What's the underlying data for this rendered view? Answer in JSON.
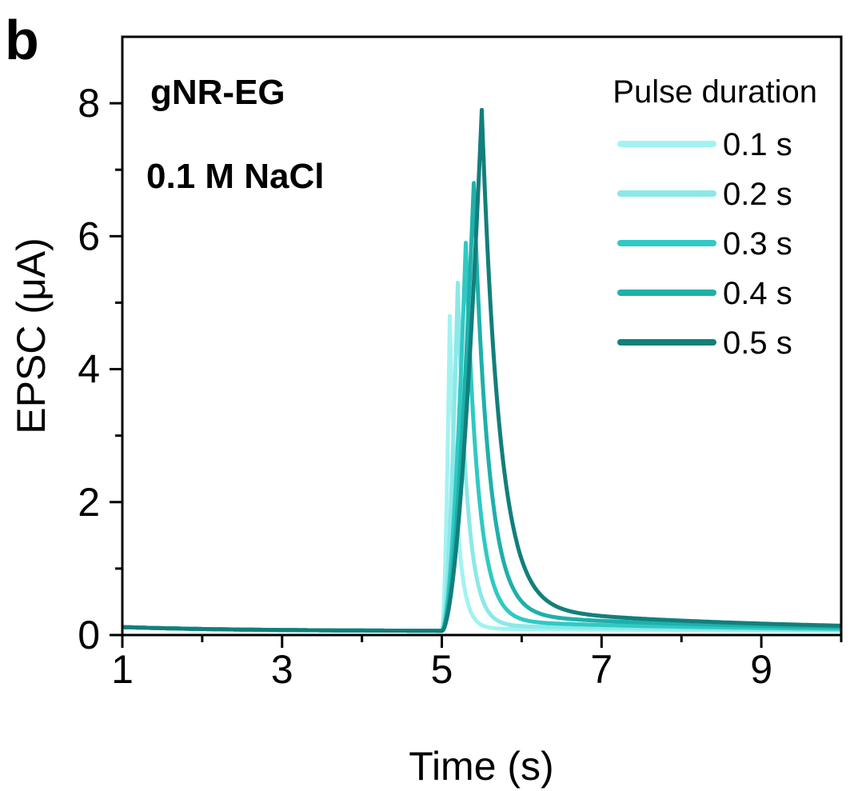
{
  "panel_label": "b",
  "annotations": {
    "material": "gNR-EG",
    "material_color": "#1a8a86",
    "electrolyte": "0.1 M NaCl"
  },
  "chart_data": {
    "type": "line",
    "xlabel": "Time (s)",
    "ylabel": "EPSC (μA)",
    "xlim": [
      1,
      10
    ],
    "ylim": [
      0,
      9
    ],
    "x_ticks": [
      1,
      3,
      5,
      7,
      9
    ],
    "x_minor_ticks": [
      2,
      4,
      6,
      8,
      10
    ],
    "y_ticks": [
      0,
      2,
      4,
      6,
      8
    ],
    "y_minor_ticks": [
      1,
      3,
      5,
      7
    ],
    "grid": false,
    "legend": {
      "title": "Pulse duration",
      "placement": "top-right"
    },
    "series": [
      {
        "name": "0.1 s",
        "color": "#a3f2f2",
        "baseline": 0.06,
        "pulse_start": 5.0,
        "pulse_end": 5.1,
        "peak": 4.8,
        "tail_level": 0.1,
        "decay_fast": 0.09,
        "decay_slow": 3.0
      },
      {
        "name": "0.2 s",
        "color": "#8ce8e8",
        "baseline": 0.06,
        "pulse_start": 5.0,
        "pulse_end": 5.2,
        "peak": 5.3,
        "tail_level": 0.15,
        "decay_fast": 0.12,
        "decay_slow": 3.0
      },
      {
        "name": "0.3 s",
        "color": "#30c9c4",
        "baseline": 0.06,
        "pulse_start": 5.0,
        "pulse_end": 5.3,
        "peak": 5.9,
        "tail_level": 0.22,
        "decay_fast": 0.15,
        "decay_slow": 3.0
      },
      {
        "name": "0.4 s",
        "color": "#1fb0ab",
        "baseline": 0.06,
        "pulse_start": 5.0,
        "pulse_end": 5.4,
        "peak": 6.8,
        "tail_level": 0.32,
        "decay_fast": 0.18,
        "decay_slow": 3.0
      },
      {
        "name": "0.5 s",
        "color": "#127f7b",
        "baseline": 0.06,
        "pulse_start": 5.0,
        "pulse_end": 5.5,
        "peak": 7.9,
        "tail_level": 0.42,
        "decay_fast": 0.22,
        "decay_slow": 3.0
      }
    ]
  }
}
